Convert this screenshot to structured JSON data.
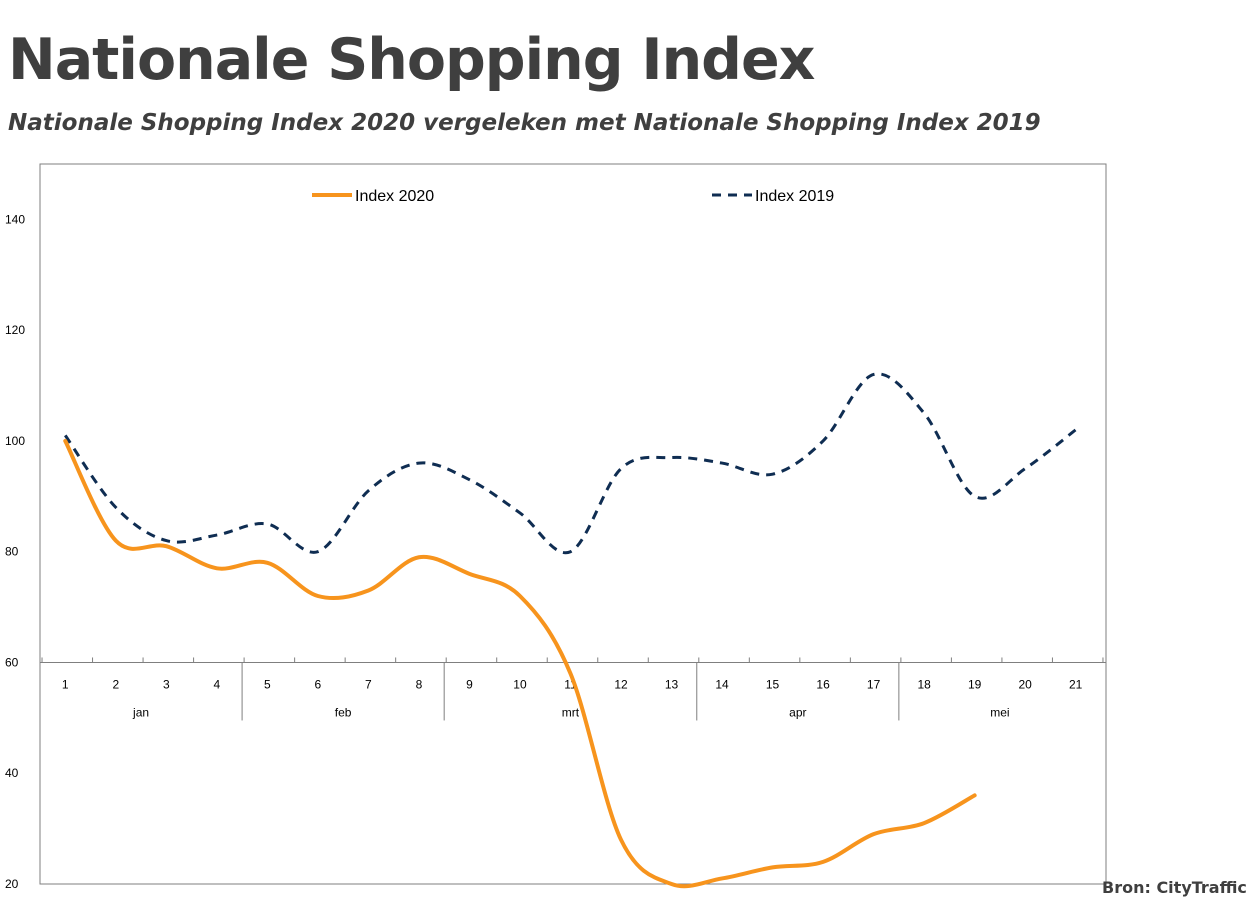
{
  "page": {
    "title": "Nationale Shopping Index",
    "subtitle": "Nationale Shopping Index 2020 vergeleken met Nationale Shopping Index 2019",
    "source": "Bron: CityTraffic"
  },
  "chart_data": {
    "type": "line",
    "title": "Nationale Shopping Index",
    "subtitle": "Nationale Shopping Index 2020 vergeleken met Nationale Shopping Index 2019",
    "xlabel": "",
    "ylabel": "",
    "ylim": [
      20,
      150
    ],
    "yticks": [
      20,
      40,
      60,
      80,
      100,
      120,
      140
    ],
    "x_crosses_at": 60,
    "categories": [
      "1",
      "2",
      "3",
      "4",
      "5",
      "6",
      "7",
      "8",
      "9",
      "10",
      "11",
      "12",
      "13",
      "14",
      "15",
      "16",
      "17",
      "18",
      "19",
      "20",
      "21"
    ],
    "months": [
      {
        "label": "jan",
        "from": 1,
        "to": 4
      },
      {
        "label": "feb",
        "from": 5,
        "to": 8
      },
      {
        "label": "mrt",
        "from": 9,
        "to": 13
      },
      {
        "label": "apr",
        "from": 14,
        "to": 17
      },
      {
        "label": "mei",
        "from": 18,
        "to": 21
      }
    ],
    "legend": "top",
    "series": [
      {
        "name": "Index 2020",
        "color": "#f7941d",
        "style": "solid",
        "values": [
          100,
          82,
          81,
          77,
          78,
          72,
          73,
          79,
          76,
          72,
          58,
          28,
          20,
          21,
          23,
          24,
          29,
          31,
          36,
          null,
          null
        ]
      },
      {
        "name": "Index 2019",
        "color": "#0f2d52",
        "style": "dashed",
        "values": [
          101,
          88,
          82,
          83,
          85,
          80,
          91,
          96,
          93,
          87,
          80,
          95,
          97,
          96,
          94,
          100,
          112,
          105,
          90,
          95,
          102
        ]
      }
    ]
  }
}
